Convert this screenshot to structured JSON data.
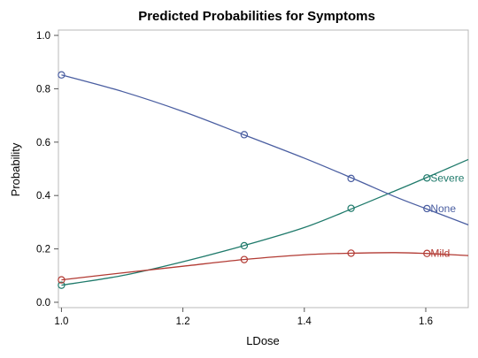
{
  "chart_data": {
    "type": "line",
    "title": "Predicted Probabilities for Symptoms",
    "xlabel": "LDose",
    "ylabel": "Probability",
    "xlim": [
      0.995,
      1.67
    ],
    "ylim": [
      -0.02,
      1.02
    ],
    "xticks": [
      "1.0",
      "1.2",
      "1.4",
      "1.6"
    ],
    "yticks": [
      "0.0",
      "0.2",
      "0.4",
      "0.6",
      "0.8",
      "1.0"
    ],
    "grid": false,
    "legend": "inline labels at right",
    "series": [
      {
        "name": "Severe",
        "color": "#1f7a6b",
        "curve_x": [
          1.0,
          1.1,
          1.2,
          1.3,
          1.4,
          1.48,
          1.55,
          1.6,
          1.67
        ],
        "curve_y": [
          0.064,
          0.1,
          0.152,
          0.212,
          0.28,
          0.352,
          0.418,
          0.466,
          0.535
        ],
        "points_x": [
          1.0,
          1.301,
          1.477,
          1.602
        ],
        "points_y": [
          0.064,
          0.212,
          0.352,
          0.466
        ]
      },
      {
        "name": "None",
        "color": "#4a5ea1",
        "curve_x": [
          1.0,
          1.1,
          1.2,
          1.3,
          1.4,
          1.48,
          1.55,
          1.6,
          1.67
        ],
        "curve_y": [
          0.852,
          0.79,
          0.715,
          0.628,
          0.54,
          0.464,
          0.395,
          0.351,
          0.29
        ],
        "points_x": [
          1.0,
          1.301,
          1.477,
          1.602
        ],
        "points_y": [
          0.852,
          0.628,
          0.464,
          0.351
        ]
      },
      {
        "name": "Mild",
        "color": "#b23a33",
        "curve_x": [
          1.0,
          1.1,
          1.2,
          1.3,
          1.4,
          1.48,
          1.55,
          1.6,
          1.67
        ],
        "curve_y": [
          0.084,
          0.11,
          0.135,
          0.16,
          0.178,
          0.184,
          0.186,
          0.183,
          0.175
        ],
        "points_x": [
          1.0,
          1.301,
          1.477,
          1.602
        ],
        "points_y": [
          0.084,
          0.16,
          0.184,
          0.183
        ]
      }
    ]
  }
}
